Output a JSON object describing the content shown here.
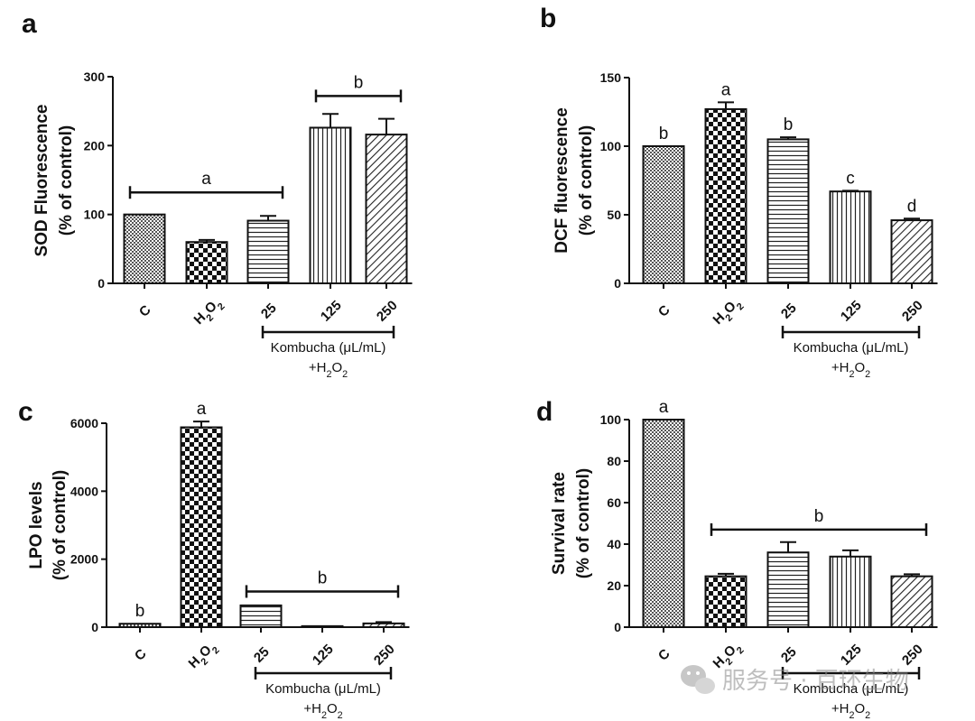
{
  "figure": {
    "watermark": {
      "text": "服务号 · 百环生物"
    }
  },
  "chart_data": [
    {
      "panel": "a",
      "type": "bar",
      "title": "",
      "ylabel": [
        "SOD Fluorescence",
        "(% of control)"
      ],
      "ylim": [
        0,
        300
      ],
      "yticks": [
        0,
        100,
        200,
        300
      ],
      "categories": [
        "C",
        "H2O2",
        "25",
        "125",
        "250"
      ],
      "values": [
        100,
        60,
        91,
        226,
        216
      ],
      "errors": [
        0,
        3,
        7,
        20,
        23
      ],
      "patterns": [
        "fine",
        "checker",
        "hlines",
        "vlines",
        "diag"
      ],
      "bar_letters": [],
      "brackets": [
        {
          "from": 0,
          "to": 2,
          "y": 132,
          "label": "a"
        },
        {
          "from": 3,
          "to": 4,
          "y": 272,
          "label": "b"
        }
      ],
      "group_label": {
        "line1": "Kombucha (μL/mL)",
        "line2": "+H2O2",
        "from": 2,
        "to": 4
      },
      "legend": "none"
    },
    {
      "panel": "b",
      "type": "bar",
      "title": "",
      "ylabel": [
        "DCF fluorescence",
        "(% of control)"
      ],
      "ylim": [
        0,
        150
      ],
      "yticks": [
        0,
        50,
        100,
        150
      ],
      "categories": [
        "C",
        "H2O2",
        "25",
        "125",
        "250"
      ],
      "values": [
        100,
        127,
        105,
        67,
        46
      ],
      "errors": [
        0,
        5,
        1.5,
        0.5,
        1.2
      ],
      "patterns": [
        "fine",
        "checker",
        "hlines",
        "vlines",
        "diag"
      ],
      "bar_letters": [
        "b",
        "a",
        "b",
        "c",
        "d"
      ],
      "brackets": [],
      "group_label": {
        "line1": "Kombucha (μL/mL)",
        "line2": "+H2O2",
        "from": 2,
        "to": 4
      },
      "legend": "none"
    },
    {
      "panel": "c",
      "type": "bar",
      "title": "",
      "ylabel": [
        "LPO levels",
        "(% of control)"
      ],
      "ylim": [
        0,
        6000
      ],
      "yticks": [
        0,
        2000,
        4000,
        6000
      ],
      "categories": [
        "C",
        "H2O2",
        "25",
        "125",
        "250"
      ],
      "values": [
        100,
        5880,
        640,
        30,
        110
      ],
      "errors": [
        0,
        170,
        0,
        0,
        40
      ],
      "patterns": [
        "fine",
        "checker",
        "hlines",
        "vlines",
        "diag"
      ],
      "bar_letters": [
        "b",
        "a",
        "",
        "",
        ""
      ],
      "brackets": [
        {
          "from": 2,
          "to": 4,
          "y": 1050,
          "label": "b"
        }
      ],
      "group_label": {
        "line1": "Kombucha (μL/mL)",
        "line2": "+H2O2",
        "from": 2,
        "to": 4
      },
      "legend": "none"
    },
    {
      "panel": "d",
      "type": "bar",
      "title": "",
      "ylabel": [
        "Survival rate",
        "(% of control)"
      ],
      "ylim": [
        0,
        100
      ],
      "yticks": [
        0,
        20,
        40,
        60,
        80,
        100
      ],
      "categories": [
        "C",
        "H2O2",
        "25",
        "125",
        "250"
      ],
      "values": [
        100,
        24.5,
        36,
        34,
        24.5
      ],
      "errors": [
        0,
        1.2,
        5,
        3,
        1
      ],
      "patterns": [
        "fine",
        "checker",
        "hlines",
        "vlines",
        "diag"
      ],
      "bar_letters": [
        "a",
        "",
        "",
        "",
        ""
      ],
      "brackets": [
        {
          "from": 1,
          "to": 4,
          "y": 47,
          "label": "b"
        }
      ],
      "group_label": {
        "line1": "Kombucha (μL/mL)",
        "line2": "+H2O2",
        "from": 2,
        "to": 4
      },
      "legend": "none"
    }
  ]
}
